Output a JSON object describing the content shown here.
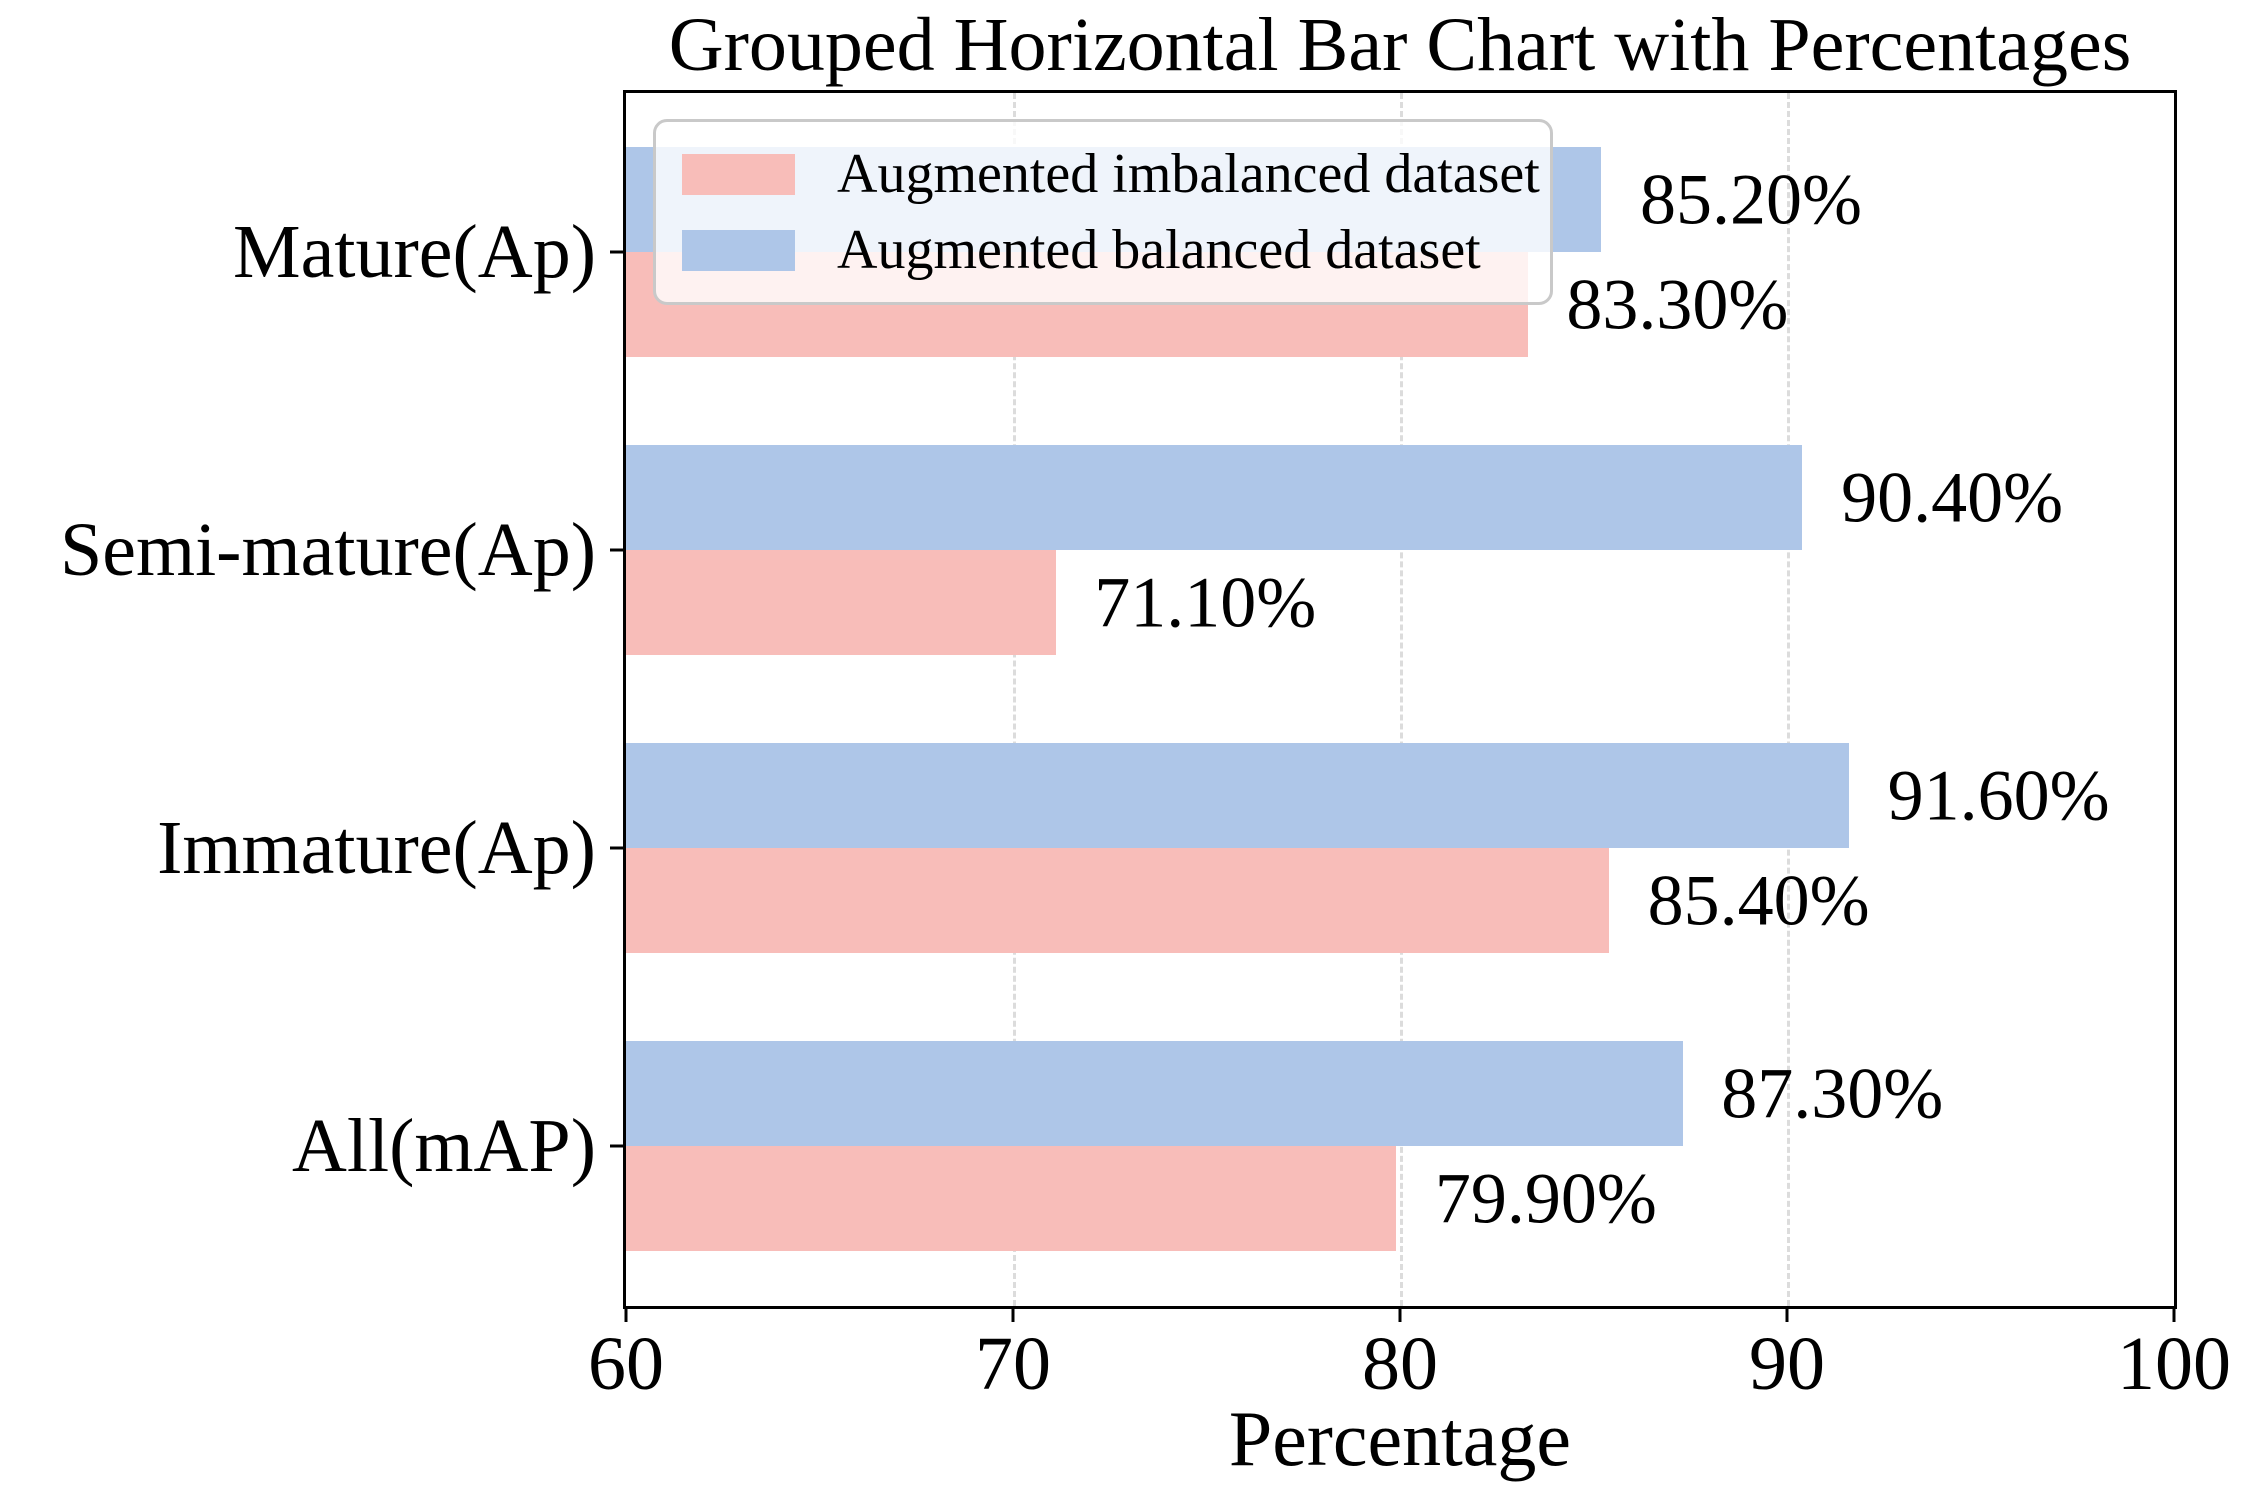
{
  "chart_data": {
    "type": "bar",
    "orientation": "horizontal",
    "title": "Grouped Horizontal Bar Chart with Percentages",
    "xlabel": "Percentage",
    "categories": [
      "Mature(Ap)",
      "Semi-mature(Ap)",
      "Immature(Ap)",
      "All(mAP)"
    ],
    "series": [
      {
        "name": "Augmented imbalanced dataset",
        "color": "#f8bdb9",
        "row": 1,
        "values": [
          83.3,
          71.1,
          85.4,
          79.9
        ],
        "labels": [
          "83.30%",
          "71.10%",
          "85.40%",
          "79.90%"
        ]
      },
      {
        "name": "Augmented balanced dataset",
        "color": "#aec6e8",
        "row": 0,
        "values": [
          85.2,
          90.4,
          91.6,
          87.3
        ],
        "labels": [
          "85.20%",
          "90.40%",
          "91.60%",
          "87.30%"
        ]
      }
    ],
    "xlim": [
      60,
      100
    ],
    "xticks": [
      60,
      70,
      80,
      90,
      100
    ],
    "grid": "dashed-vertical-at-xticks",
    "legend_position": "upper-left",
    "colors": {
      "grid": "#dcdcdc",
      "spine": "#000000",
      "value_text": "#000000"
    }
  }
}
